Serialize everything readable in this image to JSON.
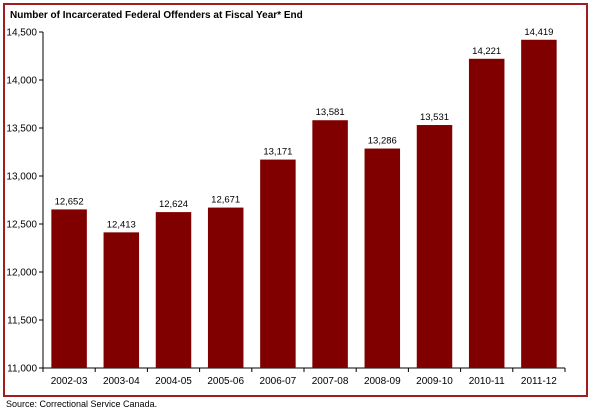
{
  "colors": {
    "bar": "#800000",
    "frame": "#a01e1e"
  },
  "footer": {
    "source": "Source: Correctional Service Canada."
  },
  "chart_data": {
    "type": "bar",
    "title": "Number of Incarcerated Federal Offenders at Fiscal Year* End",
    "xlabel": "",
    "ylabel": "",
    "categories": [
      "2002-03",
      "2003-04",
      "2004-05",
      "2005-06",
      "2006-07",
      "2007-08",
      "2008-09",
      "2009-10",
      "2010-11",
      "2011-12"
    ],
    "values": [
      12652,
      12413,
      12624,
      12671,
      13171,
      13581,
      13286,
      13531,
      14221,
      14419
    ],
    "value_labels": [
      "12,652",
      "12,413",
      "12,624",
      "12,671",
      "13,171",
      "13,581",
      "13,286",
      "13,531",
      "14,221",
      "14,419"
    ],
    "ylim": [
      11000,
      14500
    ],
    "yticks": [
      11000,
      11500,
      12000,
      12500,
      13000,
      13500,
      14000,
      14500
    ],
    "ytick_labels": [
      "11,000",
      "11,500",
      "12,000",
      "12,500",
      "13,000",
      "13,500",
      "14,000",
      "14,500"
    ],
    "grid": false,
    "legend": "none"
  }
}
